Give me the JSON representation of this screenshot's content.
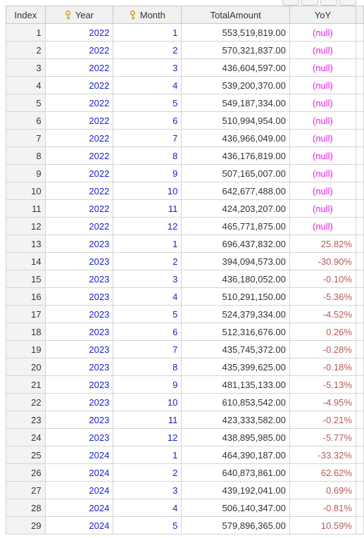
{
  "colors": {
    "header_bg": "#f0f0f0",
    "grid_line": "#d4d4d4",
    "key_value_text": "#1a21c8",
    "null_text": "#e020e0",
    "percent_text": "#b55a5a",
    "key_icon": "#d6a21a"
  },
  "icons": {
    "year_key": "key-icon",
    "month_key": "key-icon"
  },
  "grid": {
    "columns": {
      "index": "Index",
      "year": "Year",
      "month": "Month",
      "total": "TotalAmount",
      "yoy": "YoY"
    },
    "rows": [
      {
        "index": "1",
        "year": "2022",
        "month": "1",
        "total": "553,519,819.00",
        "yoy": "(null)"
      },
      {
        "index": "2",
        "year": "2022",
        "month": "2",
        "total": "570,321,837.00",
        "yoy": "(null)"
      },
      {
        "index": "3",
        "year": "2022",
        "month": "3",
        "total": "436,604,597.00",
        "yoy": "(null)"
      },
      {
        "index": "4",
        "year": "2022",
        "month": "4",
        "total": "539,200,370.00",
        "yoy": "(null)"
      },
      {
        "index": "5",
        "year": "2022",
        "month": "5",
        "total": "549,187,334.00",
        "yoy": "(null)"
      },
      {
        "index": "6",
        "year": "2022",
        "month": "6",
        "total": "510,994,954.00",
        "yoy": "(null)"
      },
      {
        "index": "7",
        "year": "2022",
        "month": "7",
        "total": "436,966,049.00",
        "yoy": "(null)"
      },
      {
        "index": "8",
        "year": "2022",
        "month": "8",
        "total": "436,176,819.00",
        "yoy": "(null)"
      },
      {
        "index": "9",
        "year": "2022",
        "month": "9",
        "total": "507,165,007.00",
        "yoy": "(null)"
      },
      {
        "index": "10",
        "year": "2022",
        "month": "10",
        "total": "642,677,488.00",
        "yoy": "(null)"
      },
      {
        "index": "11",
        "year": "2022",
        "month": "11",
        "total": "424,203,207.00",
        "yoy": "(null)"
      },
      {
        "index": "12",
        "year": "2022",
        "month": "12",
        "total": "465,771,875.00",
        "yoy": "(null)"
      },
      {
        "index": "13",
        "year": "2023",
        "month": "1",
        "total": "696,437,832.00",
        "yoy": "25.82%"
      },
      {
        "index": "14",
        "year": "2023",
        "month": "2",
        "total": "394,094,573.00",
        "yoy": "-30.90%"
      },
      {
        "index": "15",
        "year": "2023",
        "month": "3",
        "total": "436,180,052.00",
        "yoy": "-0.10%"
      },
      {
        "index": "16",
        "year": "2023",
        "month": "4",
        "total": "510,291,150.00",
        "yoy": "-5.36%"
      },
      {
        "index": "17",
        "year": "2023",
        "month": "5",
        "total": "524,379,334.00",
        "yoy": "-4.52%"
      },
      {
        "index": "18",
        "year": "2023",
        "month": "6",
        "total": "512,316,676.00",
        "yoy": "0.26%"
      },
      {
        "index": "19",
        "year": "2023",
        "month": "7",
        "total": "435,745,372.00",
        "yoy": "-0.28%"
      },
      {
        "index": "20",
        "year": "2023",
        "month": "8",
        "total": "435,399,625.00",
        "yoy": "-0.18%"
      },
      {
        "index": "21",
        "year": "2023",
        "month": "9",
        "total": "481,135,133.00",
        "yoy": "-5.13%"
      },
      {
        "index": "22",
        "year": "2023",
        "month": "10",
        "total": "610,853,542.00",
        "yoy": "-4.95%"
      },
      {
        "index": "23",
        "year": "2023",
        "month": "11",
        "total": "423,333,582.00",
        "yoy": "-0.21%"
      },
      {
        "index": "24",
        "year": "2023",
        "month": "12",
        "total": "438,895,985.00",
        "yoy": "-5.77%"
      },
      {
        "index": "25",
        "year": "2024",
        "month": "1",
        "total": "464,390,187.00",
        "yoy": "-33.32%"
      },
      {
        "index": "26",
        "year": "2024",
        "month": "2",
        "total": "640,873,861.00",
        "yoy": "62.62%"
      },
      {
        "index": "27",
        "year": "2024",
        "month": "3",
        "total": "439,192,041.00",
        "yoy": "0.69%"
      },
      {
        "index": "28",
        "year": "2024",
        "month": "4",
        "total": "506,140,347.00",
        "yoy": "-0.81%"
      },
      {
        "index": "29",
        "year": "2024",
        "month": "5",
        "total": "579,896,365.00",
        "yoy": "10.59%"
      }
    ]
  }
}
